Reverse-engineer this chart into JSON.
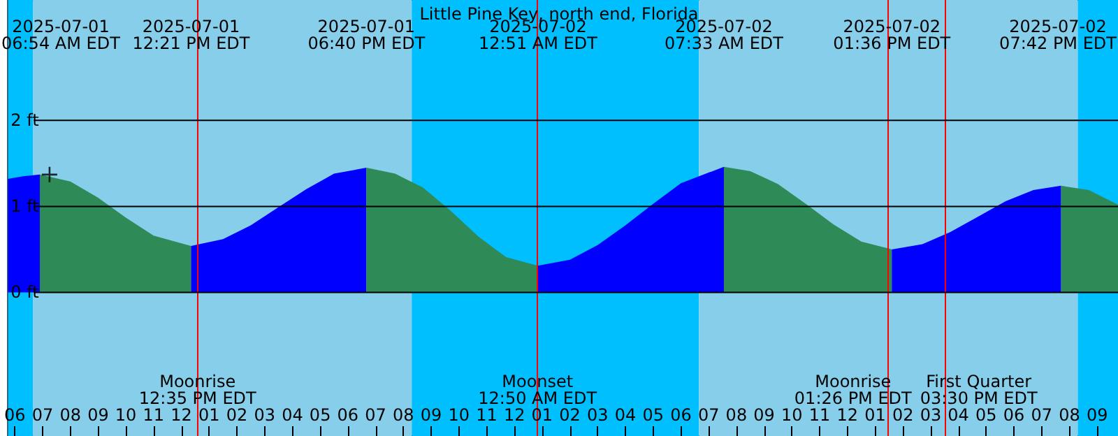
{
  "chart_data": {
    "type": "area",
    "title": "Little Pine Key, north end, Florida",
    "xlim": [
      "2025-07-01T05:45",
      "2025-07-02T21:45"
    ],
    "xticks": [
      {
        "value": "2025-07-01T06:00",
        "label": "06"
      },
      {
        "value": "2025-07-01T07:00",
        "label": "07"
      },
      {
        "value": "2025-07-01T08:00",
        "label": "08"
      },
      {
        "value": "2025-07-01T09:00",
        "label": "09"
      },
      {
        "value": "2025-07-01T10:00",
        "label": "10"
      },
      {
        "value": "2025-07-01T11:00",
        "label": "11"
      },
      {
        "value": "2025-07-01T12:00",
        "label": "12"
      },
      {
        "value": "2025-07-01T13:00",
        "label": "01"
      },
      {
        "value": "2025-07-01T14:00",
        "label": "02"
      },
      {
        "value": "2025-07-01T15:00",
        "label": "03"
      },
      {
        "value": "2025-07-01T16:00",
        "label": "04"
      },
      {
        "value": "2025-07-01T17:00",
        "label": "05"
      },
      {
        "value": "2025-07-01T18:00",
        "label": "06"
      },
      {
        "value": "2025-07-01T19:00",
        "label": "07"
      },
      {
        "value": "2025-07-01T20:00",
        "label": "08"
      },
      {
        "value": "2025-07-01T21:00",
        "label": "09"
      },
      {
        "value": "2025-07-01T22:00",
        "label": "10"
      },
      {
        "value": "2025-07-01T23:00",
        "label": "11"
      },
      {
        "value": "2025-07-02T00:00",
        "label": "12"
      },
      {
        "value": "2025-07-02T01:00",
        "label": "01"
      },
      {
        "value": "2025-07-02T02:00",
        "label": "02"
      },
      {
        "value": "2025-07-02T03:00",
        "label": "03"
      },
      {
        "value": "2025-07-02T04:00",
        "label": "04"
      },
      {
        "value": "2025-07-02T05:00",
        "label": "05"
      },
      {
        "value": "2025-07-02T06:00",
        "label": "06"
      },
      {
        "value": "2025-07-02T07:00",
        "label": "07"
      },
      {
        "value": "2025-07-02T08:00",
        "label": "08"
      },
      {
        "value": "2025-07-02T09:00",
        "label": "09"
      },
      {
        "value": "2025-07-02T10:00",
        "label": "10"
      },
      {
        "value": "2025-07-02T11:00",
        "label": "11"
      },
      {
        "value": "2025-07-02T12:00",
        "label": "12"
      },
      {
        "value": "2025-07-02T13:00",
        "label": "01"
      },
      {
        "value": "2025-07-02T14:00",
        "label": "02"
      },
      {
        "value": "2025-07-02T15:00",
        "label": "03"
      },
      {
        "value": "2025-07-02T16:00",
        "label": "04"
      },
      {
        "value": "2025-07-02T17:00",
        "label": "05"
      },
      {
        "value": "2025-07-02T18:00",
        "label": "06"
      },
      {
        "value": "2025-07-02T19:00",
        "label": "07"
      },
      {
        "value": "2025-07-02T20:00",
        "label": "08"
      },
      {
        "value": "2025-07-02T21:00",
        "label": "09"
      }
    ],
    "ylim": [
      -1.67,
      3.4
    ],
    "yticks": [
      {
        "value": 0,
        "label": "0 ft"
      },
      {
        "value": 1,
        "label": "1 ft"
      },
      {
        "value": 2,
        "label": "2 ft"
      }
    ],
    "grid": "y",
    "series": [
      {
        "color": "#0000ff",
        "x": [
          "2025-07-01T05:45",
          "2025-07-01T06:18",
          "2025-07-01T06:54"
        ],
        "values": [
          1.32,
          1.35,
          1.37
        ]
      },
      {
        "color": "#2e8b57",
        "x": [
          "2025-07-01T06:54",
          "2025-07-01T08:00",
          "2025-07-01T09:00",
          "2025-07-01T10:00",
          "2025-07-01T11:00",
          "2025-07-01T12:21"
        ],
        "values": [
          1.37,
          1.29,
          1.1,
          0.87,
          0.66,
          0.54
        ]
      },
      {
        "color": "#0000ff",
        "x": [
          "2025-07-01T12:21",
          "2025-07-01T13:30",
          "2025-07-01T14:30",
          "2025-07-01T15:30",
          "2025-07-01T16:30",
          "2025-07-01T17:30",
          "2025-07-01T18:40"
        ],
        "values": [
          0.54,
          0.62,
          0.78,
          0.99,
          1.2,
          1.38,
          1.45
        ]
      },
      {
        "color": "#2e8b57",
        "x": [
          "2025-07-01T18:40",
          "2025-07-01T19:42",
          "2025-07-01T20:42",
          "2025-07-01T21:42",
          "2025-07-01T22:42",
          "2025-07-01T23:42",
          "2025-07-02T00:51"
        ],
        "values": [
          1.45,
          1.38,
          1.22,
          0.95,
          0.65,
          0.41,
          0.31
        ]
      },
      {
        "color": "#0000ff",
        "x": [
          "2025-07-02T00:51",
          "2025-07-02T02:00",
          "2025-07-02T03:00",
          "2025-07-02T04:00",
          "2025-07-02T05:00",
          "2025-07-02T06:00",
          "2025-07-02T07:33"
        ],
        "values": [
          0.31,
          0.38,
          0.55,
          0.78,
          1.03,
          1.27,
          1.46
        ]
      },
      {
        "color": "#2e8b57",
        "x": [
          "2025-07-02T07:33",
          "2025-07-02T08:30",
          "2025-07-02T09:30",
          "2025-07-02T10:30",
          "2025-07-02T11:30",
          "2025-07-02T12:30",
          "2025-07-02T13:36"
        ],
        "values": [
          1.46,
          1.41,
          1.26,
          1.03,
          0.79,
          0.59,
          0.5
        ]
      },
      {
        "color": "#0000ff",
        "x": [
          "2025-07-02T13:36",
          "2025-07-02T14:42",
          "2025-07-02T15:42",
          "2025-07-02T16:42",
          "2025-07-02T17:42",
          "2025-07-02T18:42",
          "2025-07-02T19:42"
        ],
        "values": [
          0.5,
          0.56,
          0.7,
          0.88,
          1.06,
          1.19,
          1.24
        ]
      },
      {
        "color": "#2e8b57",
        "x": [
          "2025-07-02T19:42",
          "2025-07-02T20:42",
          "2025-07-02T21:45"
        ],
        "values": [
          1.24,
          1.19,
          1.02
        ]
      },
      {
        "type": "scatter",
        "marker": "cross",
        "color": "#000000",
        "x": [
          "2025-07-01T07:15"
        ],
        "values": [
          1.37
        ]
      }
    ],
    "bands": [
      {
        "axis": "x",
        "from": "2025-07-01T05:45",
        "to": "2025-07-01T06:39",
        "color": "#00bfff"
      },
      {
        "axis": "x",
        "from": "2025-07-01T06:39",
        "to": "2025-07-01T20:18",
        "color": "#87ceeb"
      },
      {
        "axis": "x",
        "from": "2025-07-01T20:18",
        "to": "2025-07-02T06:39",
        "color": "#00bfff"
      },
      {
        "axis": "x",
        "from": "2025-07-02T06:39",
        "to": "2025-07-02T20:18",
        "color": "#87ceeb"
      },
      {
        "axis": "x",
        "from": "2025-07-02T20:18",
        "to": "2025-07-02T21:45",
        "color": "#00bfff"
      }
    ],
    "ref_lines": [
      {
        "axis": "x",
        "value": "2025-07-01T12:35",
        "label": "Moonrise\n12:35 PM EDT",
        "color": "#ff0000"
      },
      {
        "axis": "x",
        "value": "2025-07-02T00:50",
        "label": "Moonset\n12:50 AM EDT",
        "color": "#ff0000"
      },
      {
        "axis": "x",
        "value": "2025-07-02T13:26",
        "label": "Moonrise\n01:26 PM EDT",
        "color": "#ff0000"
      },
      {
        "axis": "x",
        "value": "2025-07-02T15:30",
        "label": "First Quarter\n03:30 PM EDT",
        "color": "#ff0000"
      }
    ],
    "annotations": [
      "2025-07-01\n06:54 AM EDT",
      "2025-07-01\n12:21 PM EDT",
      "2025-07-01\n06:40 PM EDT",
      "2025-07-02\n12:51 AM EDT",
      "2025-07-02\n07:33 AM EDT",
      "2025-07-02\n01:36 PM EDT",
      "2025-07-02\n07:42 PM EDT"
    ]
  }
}
